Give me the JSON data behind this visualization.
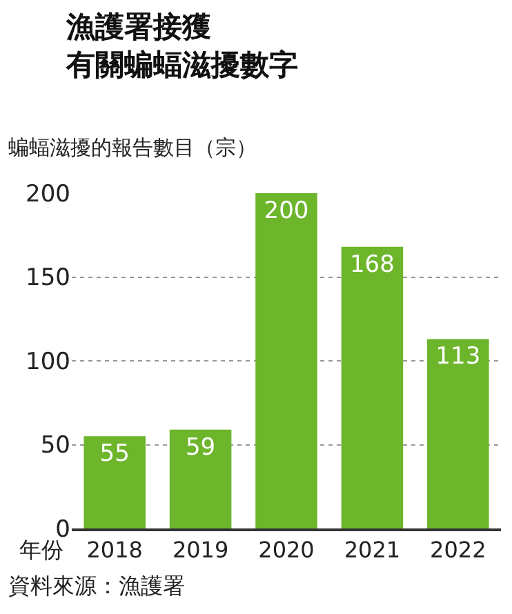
{
  "chart_data": {
    "type": "bar",
    "title": "漁護署接獲",
    "subtitle": "有關蝙蝠滋擾數字",
    "ylabel": "蝙蝠滋擾的報告數目（宗）",
    "xlabel": "年份",
    "categories": [
      "2018",
      "2019",
      "2020",
      "2021",
      "2022"
    ],
    "values": [
      55,
      59,
      200,
      168,
      113
    ],
    "color": "#6db52b",
    "ylim": [
      0,
      200
    ],
    "yticks": [
      0,
      50,
      100,
      150,
      200
    ],
    "grid": "y",
    "data_labels": true,
    "annotations": [
      "資料來源：漁護署"
    ]
  }
}
